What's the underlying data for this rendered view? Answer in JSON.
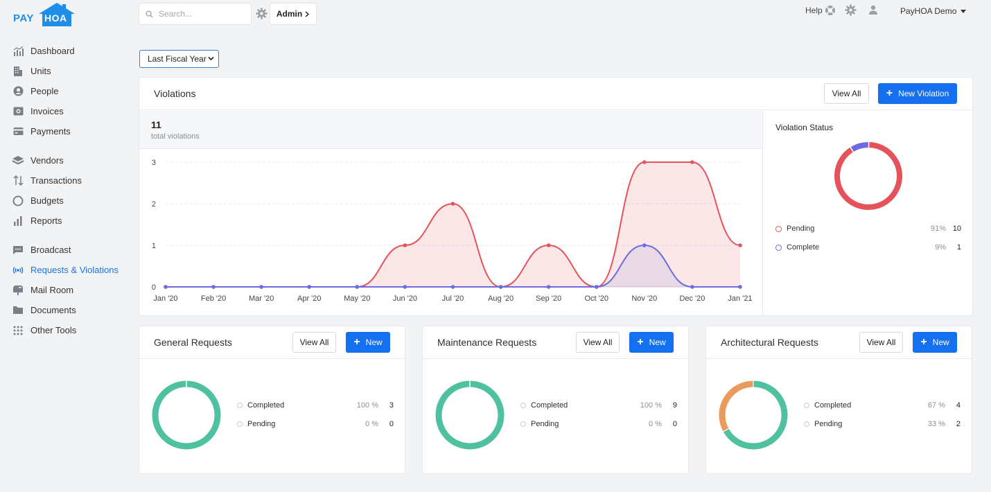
{
  "app": {
    "logo_pay": "PAY",
    "logo_hoa": "HOA",
    "brand_color": "#1e8ee8"
  },
  "sidebar": {
    "groups": [
      [
        {
          "label": "Dashboard",
          "icon": "dashboard-icon"
        },
        {
          "label": "Units",
          "icon": "building-icon"
        },
        {
          "label": "People",
          "icon": "person-icon"
        },
        {
          "label": "Invoices",
          "icon": "invoice-icon"
        },
        {
          "label": "Payments",
          "icon": "payment-icon"
        }
      ],
      [
        {
          "label": "Vendors",
          "icon": "vendor-icon"
        },
        {
          "label": "Transactions",
          "icon": "transactions-icon"
        },
        {
          "label": "Budgets",
          "icon": "budget-icon"
        },
        {
          "label": "Reports",
          "icon": "reports-icon"
        }
      ],
      [
        {
          "label": "Broadcast",
          "icon": "broadcast-icon"
        },
        {
          "label": "Requests & Violations",
          "icon": "requests-icon",
          "active": true
        },
        {
          "label": "Mail Room",
          "icon": "mailbox-icon"
        },
        {
          "label": "Documents",
          "icon": "folder-icon"
        },
        {
          "label": "Other Tools",
          "icon": "grid-icon"
        }
      ]
    ]
  },
  "topbar": {
    "search_placeholder": "Search...",
    "admin_label": "Admin",
    "help_label": "Help",
    "account_label": "PayHOA Demo"
  },
  "filter": {
    "period_selected": "Last Fiscal Year"
  },
  "violations": {
    "title": "Violations",
    "view_all_label": "View All",
    "new_label": "New Violation",
    "total": "11",
    "total_label": "total violations",
    "status_title": "Violation Status",
    "status": [
      {
        "label": "Pending",
        "pct": "91%",
        "value": "10",
        "color": "#e5525a"
      },
      {
        "label": "Complete",
        "pct": "9%",
        "value": "1",
        "color": "#6b6ce0"
      }
    ]
  },
  "chart_data": {
    "type": "area",
    "categories": [
      "Jan '20",
      "Feb '20",
      "Mar '20",
      "Apr '20",
      "May '20",
      "Jun '20",
      "Jul '20",
      "Aug '20",
      "Sep '20",
      "Oct '20",
      "Nov '20",
      "Dec '20",
      "Jan '21"
    ],
    "series": [
      {
        "values": [
          0,
          0,
          0,
          0,
          0,
          1,
          2,
          0,
          1,
          0,
          3,
          3,
          1
        ],
        "color": "#e5525a"
      },
      {
        "values": [
          0,
          0,
          0,
          0,
          0,
          0,
          0,
          0,
          0,
          0,
          1,
          0,
          0
        ],
        "color": "#6b6ce0"
      }
    ],
    "yticks": [
      "0",
      "1",
      "2",
      "3"
    ],
    "ylim": [
      0,
      3
    ],
    "grid": true
  },
  "requests": [
    {
      "title": "General Requests",
      "view_all_label": "View All",
      "new_label": "New",
      "rows": [
        {
          "label": "Completed",
          "pct": "100 %",
          "value": "3"
        },
        {
          "label": "Pending",
          "pct": "0 %",
          "value": "0"
        }
      ],
      "donut": [
        {
          "fraction": 1.0,
          "color": "#4fc1a0"
        }
      ]
    },
    {
      "title": "Maintenance Requests",
      "view_all_label": "View All",
      "new_label": "New",
      "rows": [
        {
          "label": "Completed",
          "pct": "100 %",
          "value": "9"
        },
        {
          "label": "Pending",
          "pct": "0 %",
          "value": "0"
        }
      ],
      "donut": [
        {
          "fraction": 1.0,
          "color": "#4fc1a0"
        }
      ]
    },
    {
      "title": "Architectural Requests",
      "view_all_label": "View All",
      "new_label": "New",
      "rows": [
        {
          "label": "Completed",
          "pct": "67 %",
          "value": "4"
        },
        {
          "label": "Pending",
          "pct": "33 %",
          "value": "2"
        }
      ],
      "donut": [
        {
          "fraction": 0.67,
          "color": "#4fc1a0"
        },
        {
          "fraction": 0.33,
          "color": "#ea9a5c"
        }
      ]
    }
  ]
}
